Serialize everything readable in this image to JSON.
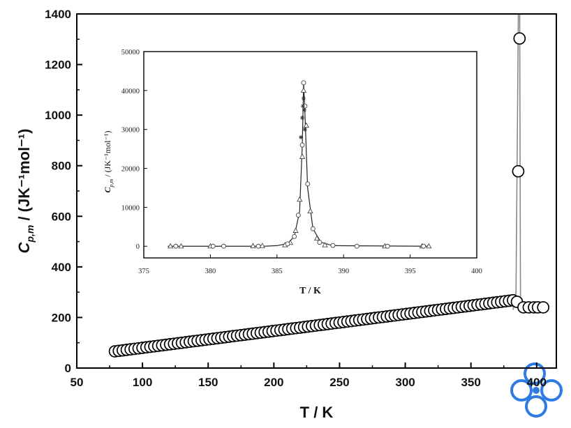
{
  "chart_data": [
    {
      "type": "scatter",
      "xlabel": "T / K",
      "ylabel": "C_p,m / (JK⁻¹mol⁻¹)",
      "xlim": [
        50,
        415
      ],
      "ylim": [
        0,
        1400
      ],
      "xticks": [
        50,
        100,
        150,
        200,
        250,
        300,
        350,
        400
      ],
      "yticks": [
        0,
        200,
        400,
        600,
        800,
        1000,
        1200,
        1400
      ],
      "grid": false,
      "series": [
        {
          "marker": "open-circle",
          "color": "#000000",
          "x": [
            79,
            82,
            85,
            88,
            91,
            94,
            97,
            100,
            103,
            106,
            109,
            112,
            115,
            118,
            121,
            124,
            127,
            130,
            133,
            136,
            139,
            142,
            145,
            148,
            151,
            154,
            157,
            160,
            163,
            166,
            169,
            172,
            175,
            178,
            181,
            184,
            187,
            190,
            193,
            196,
            199,
            202,
            205,
            208,
            211,
            214,
            217,
            220,
            223,
            226,
            229,
            232,
            235,
            238,
            241,
            244,
            247,
            250,
            253,
            256,
            259,
            262,
            265,
            268,
            271,
            274,
            277,
            280,
            283,
            286,
            289,
            292,
            295,
            298,
            301,
            304,
            307,
            310,
            313,
            316,
            319,
            322,
            325,
            328,
            331,
            334,
            337,
            340,
            343,
            346,
            349,
            352,
            355,
            358,
            361,
            364,
            367,
            370,
            373,
            376,
            379,
            382,
            385,
            386,
            387,
            390,
            394,
            398,
            401,
            405
          ],
          "y": [
            66,
            68,
            70,
            72,
            74,
            76,
            78,
            80,
            82,
            84,
            86,
            88,
            90,
            92,
            94,
            96,
            98,
            100,
            102,
            104,
            106,
            108,
            110,
            112,
            114,
            116,
            118,
            120,
            122,
            124,
            126,
            128,
            130,
            132,
            134,
            136,
            138,
            140,
            142,
            144,
            146,
            148,
            150,
            152,
            154,
            156,
            158,
            160,
            162,
            164,
            166,
            168,
            170,
            172,
            174,
            176,
            178,
            180,
            182,
            184,
            186,
            188,
            190,
            192,
            194,
            196,
            198,
            200,
            202,
            204,
            206,
            208,
            210,
            212,
            214,
            216,
            218,
            220,
            222,
            224,
            226,
            228,
            230,
            232,
            234,
            236,
            238,
            240,
            242,
            244,
            246,
            248,
            250,
            252,
            254,
            256,
            258,
            260,
            262,
            264,
            266,
            268,
            262,
            778,
            1303,
            240,
            240,
            240,
            240,
            240
          ]
        }
      ],
      "line": {
        "color": "#888888",
        "x": [
          382,
          384.3,
          386.1,
          386.6,
          387.1,
          387.7,
          388.8
        ],
        "y": [
          230,
          300,
          1400,
          1400,
          1400,
          280,
          240
        ]
      }
    },
    {
      "type": "scatter",
      "inset": true,
      "xlabel": "T / K",
      "ylabel": "C_p,m / (JK⁻¹mol⁻¹)",
      "xlim": [
        375,
        400
      ],
      "ylim": [
        -3000,
        50000
      ],
      "xticks": [
        375,
        380,
        385,
        390,
        395,
        400
      ],
      "yticks": [
        0,
        10000,
        20000,
        30000,
        40000,
        50000
      ],
      "grid": false,
      "series": [
        {
          "marker": "open-triangle",
          "color": "#444444",
          "x": [
            377.0,
            377.8,
            380.0,
            383.2,
            383.9,
            385.6,
            386.0,
            386.4,
            386.7,
            386.9,
            387.0,
            387.2,
            387.5,
            388.0,
            388.6,
            393.1,
            395.9,
            396.4
          ],
          "y": [
            0,
            0,
            0,
            50,
            100,
            300,
            900,
            4000,
            12000,
            23000,
            40000,
            31000,
            9000,
            2000,
            300,
            0,
            0,
            0
          ]
        },
        {
          "marker": "open-circle",
          "color": "#444444",
          "x": [
            377.4,
            380.2,
            381.0,
            383.6,
            385.8,
            386.3,
            386.6,
            386.9,
            387.0,
            387.1,
            387.3,
            387.7,
            388.2,
            389.2,
            391.0,
            393.3,
            396.0
          ],
          "y": [
            0,
            0,
            0,
            0,
            600,
            2500,
            8000,
            26000,
            42000,
            36000,
            16000,
            4500,
            1000,
            200,
            0,
            0,
            0
          ]
        },
        {
          "marker": "star",
          "color": "#333333",
          "x": [
            386.8,
            386.9,
            386.95,
            387.0,
            387.05,
            387.1
          ],
          "y": [
            28000,
            33000,
            36000,
            38000,
            35000,
            30000
          ]
        }
      ],
      "line": {
        "color": "#222222",
        "x": [
          376.8,
          384,
          385,
          385.8,
          386.3,
          386.7,
          386.9,
          387.0,
          387.1,
          387.3,
          387.7,
          388.3,
          389.2,
          396.5
        ],
        "y": [
          0,
          0,
          150,
          700,
          2500,
          9000,
          26000,
          42000,
          34000,
          15000,
          4500,
          1000,
          150,
          0
        ]
      }
    }
  ],
  "logo": {
    "name": "watermark-logo",
    "color": "#2f7be3"
  }
}
